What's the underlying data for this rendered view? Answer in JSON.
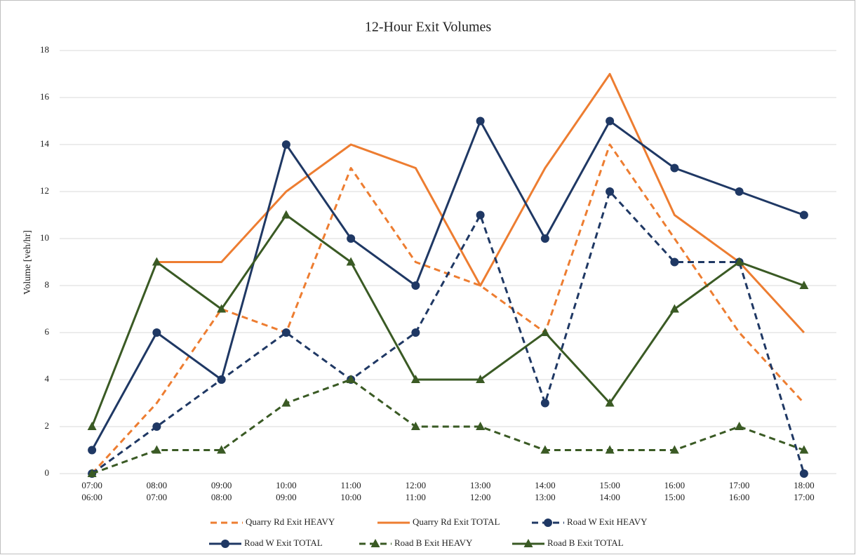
{
  "chart_data": {
    "type": "line",
    "title": "12-Hour Exit Volumes",
    "y_label": "Volume [veh/hr]",
    "categories": [
      [
        "07:00",
        "06:00"
      ],
      [
        "08:00",
        "07:00"
      ],
      [
        "09:00",
        "08:00"
      ],
      [
        "10:00",
        "09:00"
      ],
      [
        "11:00",
        "10:00"
      ],
      [
        "12:00",
        "11:00"
      ],
      [
        "13:00",
        "12:00"
      ],
      [
        "14:00",
        "13:00"
      ],
      [
        "15:00",
        "14:00"
      ],
      [
        "16:00",
        "15:00"
      ],
      [
        "17:00",
        "16:00"
      ],
      [
        "18:00",
        "17:00"
      ]
    ],
    "ylim": [
      0,
      18
    ],
    "yticks": [
      0,
      2,
      4,
      6,
      8,
      10,
      12,
      14,
      16,
      18
    ],
    "grid": true,
    "legend": "bottom",
    "series": [
      {
        "name": "Quarry Rd Exit HEAVY",
        "color": "#ed7d31",
        "dashed": true,
        "marker": null,
        "values": [
          0,
          3,
          7,
          6,
          13,
          9,
          8,
          6,
          14,
          10,
          6,
          3
        ]
      },
      {
        "name": "Quarry Rd Exit TOTAL",
        "color": "#ed7d31",
        "dashed": false,
        "marker": null,
        "values": [
          null,
          9,
          9,
          12,
          14,
          13,
          8,
          13,
          17,
          11,
          9,
          6
        ]
      },
      {
        "name": "Road W Exit HEAVY",
        "color": "#1f3864",
        "dashed": true,
        "marker": "circle",
        "values": [
          0,
          2,
          4,
          6,
          4,
          6,
          11,
          3,
          12,
          9,
          9,
          0
        ]
      },
      {
        "name": "Road W Exit TOTAL",
        "color": "#1f3864",
        "dashed": false,
        "marker": "circle",
        "values": [
          1,
          6,
          4,
          14,
          10,
          8,
          15,
          10,
          15,
          13,
          12,
          11
        ]
      },
      {
        "name": "Road B Exit HEAVY",
        "color": "#3a5a24",
        "dashed": true,
        "marker": "triangle",
        "values": [
          0,
          1,
          1,
          3,
          4,
          2,
          2,
          1,
          1,
          1,
          2,
          1
        ]
      },
      {
        "name": "Road B Exit TOTAL",
        "color": "#3a5a24",
        "dashed": false,
        "marker": "triangle",
        "values": [
          2,
          9,
          7,
          11,
          9,
          4,
          4,
          6,
          3,
          7,
          9,
          8
        ]
      }
    ]
  }
}
